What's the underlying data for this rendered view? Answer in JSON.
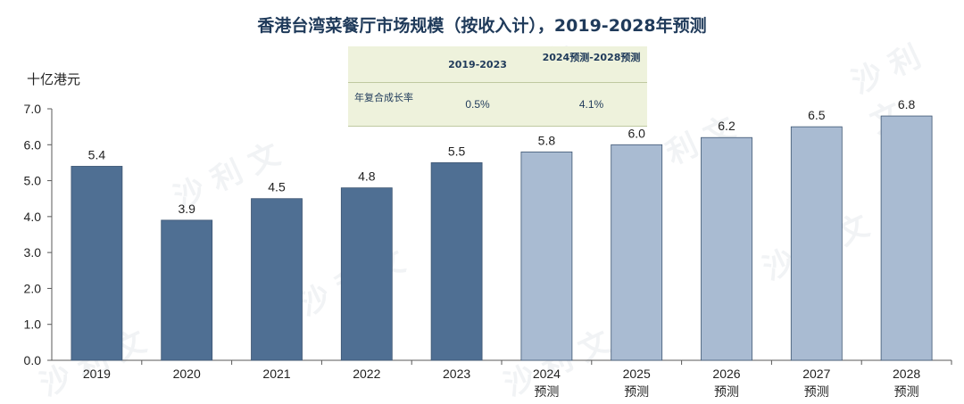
{
  "title": "香港台湾菜餐厅市场规模（按收入计），2019-2028年预测",
  "unit_label": "十亿港元",
  "cagr_table": {
    "col1_header": "2019-2023",
    "col2_header": "2024预测-2028预测",
    "row_label": "年复合成长率",
    "col1_value": "0.5%",
    "col2_value": "4.1%"
  },
  "watermark": "沙 利 文",
  "colors": {
    "actual": "#4f6f93",
    "forecast": "#a9bbd2",
    "title": "#1f3a5a",
    "axis": "#595959"
  },
  "chart_data": {
    "type": "bar",
    "title": "香港台湾菜餐厅市场规模（按收入计），2019-2028年预测",
    "ylabel": "十亿港元",
    "xlabel": "",
    "categories": [
      "2019",
      "2020",
      "2021",
      "2022",
      "2023",
      "2024",
      "2025",
      "2026",
      "2027",
      "2028"
    ],
    "category_sublabels": [
      "",
      "",
      "",
      "",
      "",
      "预测",
      "预测",
      "预测",
      "预测",
      "预测"
    ],
    "values": [
      5.4,
      3.9,
      4.5,
      4.8,
      5.5,
      5.8,
      6.0,
      6.2,
      6.5,
      6.8
    ],
    "value_labels": [
      "5.4",
      "3.9",
      "4.5",
      "4.8",
      "5.5",
      "5.8",
      "6.0",
      "6.2",
      "6.5",
      "6.8"
    ],
    "is_forecast": [
      false,
      false,
      false,
      false,
      false,
      true,
      true,
      true,
      true,
      true
    ],
    "ylim": [
      0,
      7
    ],
    "yticks": [
      "0.0",
      "1.0",
      "2.0",
      "3.0",
      "4.0",
      "5.0",
      "6.0",
      "7.0"
    ],
    "grid": false,
    "legend": "none"
  }
}
